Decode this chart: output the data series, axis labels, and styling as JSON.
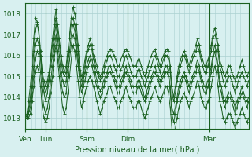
{
  "title": "Pression niveau de la mer( hPa )",
  "bg_color": "#d8f0f0",
  "plot_bg_color": "#d8f0f0",
  "grid_color": "#aad0d0",
  "line_color": "#1a6020",
  "marker_color": "#1a6020",
  "ylim": [
    1012.5,
    1018.5
  ],
  "yticks": [
    1013,
    1014,
    1015,
    1016,
    1017,
    1018
  ],
  "x_tick_labels": [
    "Ven",
    "Lun",
    "Sam",
    "Dim",
    "Mar"
  ],
  "x_tick_positions": [
    0,
    12,
    36,
    60,
    108
  ],
  "total_points": 132,
  "series": [
    [
      1013.0,
      1013.2,
      1013.8,
      1014.5,
      1015.5,
      1016.8,
      1017.8,
      1017.6,
      1017.0,
      1016.0,
      1015.2,
      1014.8,
      1014.5,
      1014.8,
      1015.2,
      1016.0,
      1016.8,
      1017.5,
      1018.2,
      1017.5,
      1016.8,
      1016.0,
      1015.5,
      1015.2,
      1015.5,
      1016.2,
      1017.0,
      1017.8,
      1018.3,
      1018.0,
      1017.5,
      1016.5,
      1015.5,
      1015.0,
      1015.2,
      1015.8,
      1016.2,
      1016.5,
      1016.8,
      1016.5,
      1016.0,
      1015.8,
      1015.5,
      1015.2,
      1015.0,
      1015.2,
      1015.5,
      1015.8,
      1016.0,
      1016.2,
      1016.3,
      1016.2,
      1016.0,
      1015.8,
      1015.5,
      1015.5,
      1015.8,
      1016.0,
      1016.2,
      1016.3,
      1016.2,
      1016.0,
      1015.8,
      1015.5,
      1015.5,
      1015.5,
      1015.8,
      1015.8,
      1015.5,
      1015.2,
      1015.0,
      1015.2,
      1015.5,
      1015.8,
      1016.0,
      1016.2,
      1016.3,
      1016.0,
      1015.8,
      1015.5,
      1015.8,
      1016.0,
      1016.2,
      1016.3,
      1016.2,
      1015.5,
      1014.5,
      1014.0,
      1014.5,
      1015.0,
      1015.5,
      1015.8,
      1016.0,
      1016.2,
      1016.0,
      1015.8,
      1015.5,
      1015.8,
      1016.0,
      1016.2,
      1016.5,
      1016.8,
      1016.5,
      1016.0,
      1015.8,
      1015.5,
      1015.5,
      1015.8,
      1016.0,
      1016.5,
      1017.0,
      1017.3,
      1017.0,
      1016.5,
      1015.8,
      1015.5,
      1015.2,
      1015.0,
      1015.2,
      1015.5,
      1015.5,
      1015.2,
      1015.0,
      1014.8,
      1015.0,
      1015.2,
      1015.5,
      1015.8,
      1015.5,
      1015.2,
      1015.0,
      1015.2
    ],
    [
      1013.0,
      1013.1,
      1013.5,
      1014.0,
      1015.0,
      1016.2,
      1017.2,
      1017.5,
      1017.2,
      1016.2,
      1015.2,
      1014.5,
      1014.2,
      1014.5,
      1015.0,
      1015.8,
      1016.5,
      1017.2,
      1017.8,
      1017.2,
      1016.5,
      1015.8,
      1015.2,
      1015.0,
      1015.2,
      1016.0,
      1016.8,
      1017.5,
      1017.8,
      1017.5,
      1017.0,
      1016.2,
      1015.3,
      1014.8,
      1015.0,
      1015.5,
      1016.0,
      1016.3,
      1016.5,
      1016.3,
      1015.8,
      1015.5,
      1015.2,
      1015.0,
      1014.8,
      1015.0,
      1015.2,
      1015.5,
      1015.8,
      1016.0,
      1016.0,
      1015.8,
      1015.5,
      1015.3,
      1015.0,
      1015.0,
      1015.3,
      1015.5,
      1015.8,
      1016.0,
      1015.8,
      1015.5,
      1015.2,
      1015.0,
      1015.0,
      1015.0,
      1015.3,
      1015.3,
      1015.0,
      1014.8,
      1014.5,
      1014.8,
      1015.0,
      1015.3,
      1015.5,
      1015.8,
      1016.0,
      1015.8,
      1015.5,
      1015.2,
      1015.5,
      1015.8,
      1016.0,
      1016.0,
      1015.8,
      1015.2,
      1014.2,
      1013.8,
      1014.2,
      1014.8,
      1015.2,
      1015.5,
      1015.8,
      1016.0,
      1015.8,
      1015.5,
      1015.2,
      1015.5,
      1015.8,
      1016.0,
      1016.2,
      1016.5,
      1016.2,
      1015.8,
      1015.5,
      1015.2,
      1015.2,
      1015.5,
      1015.8,
      1016.2,
      1016.8,
      1017.0,
      1016.8,
      1016.2,
      1015.5,
      1015.2,
      1014.8,
      1014.5,
      1014.8,
      1015.0,
      1015.0,
      1014.8,
      1014.5,
      1014.2,
      1014.5,
      1014.8,
      1015.0,
      1015.2,
      1015.0,
      1014.8,
      1014.5,
      1014.8
    ],
    [
      1013.0,
      1013.0,
      1013.3,
      1013.8,
      1014.5,
      1015.5,
      1016.5,
      1016.8,
      1016.5,
      1015.8,
      1014.8,
      1014.2,
      1013.8,
      1014.2,
      1014.8,
      1015.5,
      1016.0,
      1016.8,
      1017.5,
      1016.8,
      1016.0,
      1015.2,
      1014.8,
      1014.5,
      1014.8,
      1015.5,
      1016.2,
      1017.0,
      1017.5,
      1017.2,
      1016.5,
      1015.8,
      1015.0,
      1014.5,
      1014.8,
      1015.2,
      1015.5,
      1015.8,
      1016.0,
      1015.8,
      1015.5,
      1015.2,
      1014.8,
      1014.5,
      1014.3,
      1014.5,
      1014.8,
      1015.0,
      1015.2,
      1015.5,
      1015.5,
      1015.2,
      1015.0,
      1014.8,
      1014.5,
      1014.5,
      1014.8,
      1015.0,
      1015.2,
      1015.5,
      1015.2,
      1015.0,
      1014.8,
      1014.5,
      1014.5,
      1014.5,
      1014.8,
      1014.8,
      1014.5,
      1014.2,
      1014.0,
      1014.2,
      1014.5,
      1014.8,
      1015.0,
      1015.2,
      1015.5,
      1015.2,
      1015.0,
      1014.8,
      1015.0,
      1015.2,
      1015.5,
      1015.5,
      1015.2,
      1014.5,
      1013.5,
      1013.2,
      1013.5,
      1014.0,
      1014.5,
      1014.8,
      1015.0,
      1015.2,
      1015.0,
      1014.8,
      1014.5,
      1014.8,
      1015.0,
      1015.2,
      1015.5,
      1015.8,
      1015.5,
      1015.0,
      1014.8,
      1014.5,
      1014.5,
      1014.8,
      1015.0,
      1015.5,
      1016.0,
      1016.5,
      1016.2,
      1015.5,
      1014.8,
      1014.5,
      1014.0,
      1013.8,
      1014.0,
      1014.2,
      1014.2,
      1014.0,
      1013.8,
      1013.5,
      1013.8,
      1014.0,
      1014.2,
      1014.5,
      1014.2,
      1014.0,
      1013.8,
      1014.0
    ],
    [
      1013.0,
      1013.0,
      1013.2,
      1013.5,
      1014.2,
      1015.0,
      1015.8,
      1016.2,
      1016.0,
      1015.2,
      1014.2,
      1013.5,
      1013.2,
      1013.5,
      1014.0,
      1014.8,
      1015.5,
      1016.2,
      1017.0,
      1016.2,
      1015.5,
      1014.8,
      1014.2,
      1014.0,
      1014.2,
      1015.0,
      1015.8,
      1016.5,
      1017.0,
      1016.8,
      1016.2,
      1015.5,
      1014.8,
      1014.2,
      1014.5,
      1014.8,
      1015.2,
      1015.5,
      1015.8,
      1015.5,
      1015.2,
      1014.8,
      1014.5,
      1014.2,
      1014.0,
      1014.2,
      1014.5,
      1014.8,
      1015.0,
      1015.2,
      1015.2,
      1015.0,
      1014.8,
      1014.5,
      1014.2,
      1014.2,
      1014.5,
      1014.8,
      1015.0,
      1015.2,
      1015.0,
      1014.8,
      1014.5,
      1014.2,
      1014.2,
      1014.2,
      1014.5,
      1014.5,
      1014.2,
      1014.0,
      1013.8,
      1014.0,
      1014.2,
      1014.5,
      1014.8,
      1015.0,
      1015.2,
      1015.0,
      1014.8,
      1014.5,
      1014.8,
      1015.0,
      1015.2,
      1015.2,
      1015.0,
      1014.2,
      1013.2,
      1012.8,
      1013.2,
      1013.8,
      1014.2,
      1014.5,
      1014.8,
      1015.0,
      1014.8,
      1014.5,
      1014.2,
      1014.5,
      1014.8,
      1015.0,
      1015.2,
      1015.5,
      1015.2,
      1014.8,
      1014.5,
      1014.2,
      1014.2,
      1014.5,
      1014.8,
      1015.2,
      1015.8,
      1016.2,
      1015.8,
      1015.2,
      1014.5,
      1014.2,
      1013.8,
      1013.5,
      1013.8,
      1014.0,
      1014.0,
      1013.8,
      1013.5,
      1013.2,
      1013.5,
      1013.8,
      1014.0,
      1014.2,
      1014.0,
      1013.8,
      1013.5,
      1013.8
    ],
    [
      1013.0,
      1013.0,
      1013.0,
      1013.2,
      1013.8,
      1014.5,
      1015.2,
      1015.5,
      1015.2,
      1014.5,
      1013.5,
      1013.0,
      1012.8,
      1013.0,
      1013.5,
      1014.2,
      1015.0,
      1015.8,
      1016.5,
      1015.8,
      1015.0,
      1014.2,
      1013.5,
      1013.2,
      1013.5,
      1014.2,
      1015.0,
      1015.8,
      1016.5,
      1016.2,
      1015.5,
      1014.8,
      1014.0,
      1013.5,
      1013.8,
      1014.2,
      1014.5,
      1014.8,
      1015.0,
      1014.8,
      1014.5,
      1014.2,
      1013.8,
      1013.5,
      1013.2,
      1013.5,
      1013.8,
      1014.0,
      1014.2,
      1014.5,
      1014.5,
      1014.2,
      1014.0,
      1013.8,
      1013.5,
      1013.5,
      1013.8,
      1014.0,
      1014.2,
      1014.5,
      1014.2,
      1014.0,
      1013.8,
      1013.5,
      1013.5,
      1013.5,
      1013.8,
      1013.8,
      1013.5,
      1013.2,
      1013.0,
      1013.2,
      1013.5,
      1013.8,
      1014.0,
      1014.2,
      1014.5,
      1014.2,
      1014.0,
      1013.8,
      1014.0,
      1014.2,
      1014.5,
      1014.5,
      1014.2,
      1013.5,
      1012.5,
      1012.2,
      1012.5,
      1013.0,
      1013.5,
      1013.8,
      1014.0,
      1014.2,
      1014.0,
      1013.8,
      1013.5,
      1013.8,
      1014.0,
      1014.2,
      1014.5,
      1014.8,
      1014.5,
      1014.0,
      1013.8,
      1013.5,
      1013.5,
      1013.8,
      1014.0,
      1014.5,
      1015.0,
      1015.5,
      1015.2,
      1014.5,
      1013.8,
      1013.5,
      1013.0,
      1012.8,
      1013.0,
      1013.2,
      1013.2,
      1013.0,
      1012.8,
      1012.5,
      1012.8,
      1013.0,
      1013.2,
      1013.5,
      1013.2,
      1013.0,
      1012.8,
      1013.0
    ]
  ]
}
